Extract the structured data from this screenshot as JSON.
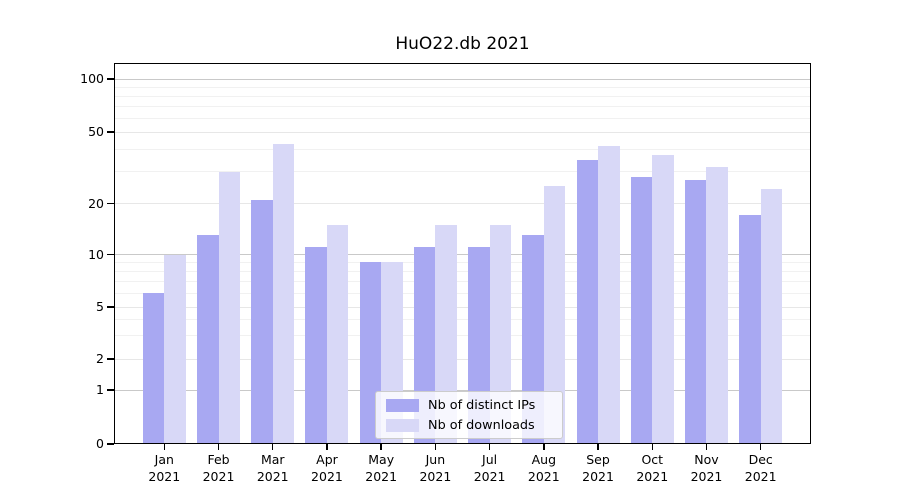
{
  "title": "HuO22.db 2021",
  "chart_data": {
    "type": "bar",
    "title": "HuO22.db 2021",
    "months": [
      "Jan",
      "Feb",
      "Mar",
      "Apr",
      "May",
      "Jun",
      "Jul",
      "Aug",
      "Sep",
      "Oct",
      "Nov",
      "Dec"
    ],
    "year_label": "2021",
    "series": [
      {
        "name": "Nb of distinct IPs",
        "color": "#a8a8f2",
        "values": [
          6,
          13,
          21,
          11,
          9,
          11,
          11,
          13,
          35,
          28,
          27,
          17
        ]
      },
      {
        "name": "Nb of downloads",
        "color": "#d8d8f7",
        "values": [
          10,
          30,
          43,
          15,
          9,
          15,
          15,
          25,
          42,
          37,
          32,
          24
        ]
      }
    ],
    "yscale": "log-like (symlog with 0 baseline)",
    "y_ticks": [
      0,
      1,
      2,
      5,
      10,
      20,
      50,
      100
    ],
    "y_gridlines_major": [
      1,
      10,
      100
    ],
    "y_gridlines_mid": [
      2,
      5,
      20,
      50
    ],
    "y_gridlines_minor": [
      3,
      4,
      6,
      7,
      8,
      9,
      30,
      40,
      60,
      70,
      80,
      90
    ],
    "ylim": [
      0,
      130
    ],
    "grid": true,
    "legend_position": "lower center",
    "colors": {
      "axis": "#000000",
      "grid_major": "#c9c9c9",
      "grid_minor": "#f1f1f1"
    }
  }
}
